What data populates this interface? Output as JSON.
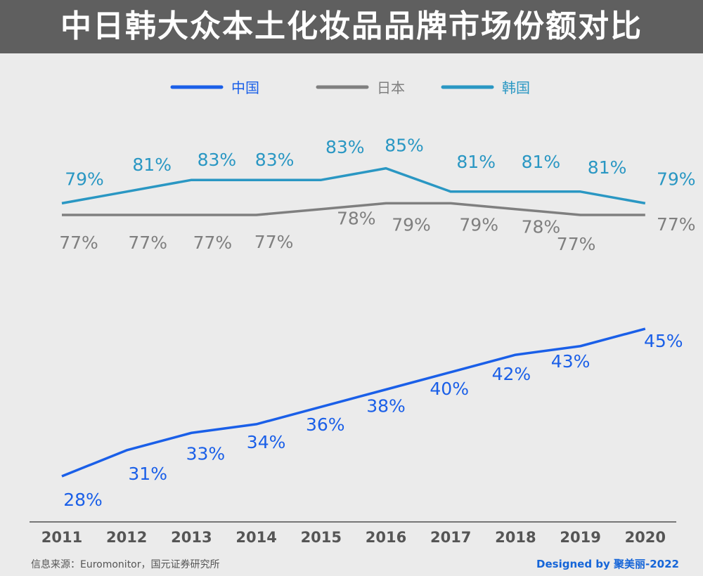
{
  "title": "中日韩大众本土化妆品品牌市场份额对比",
  "source": "信息来源：Euromonitor，国元证券研究所",
  "credit": "Designed by 聚美丽-2022",
  "colors": {
    "中国": "#1a5fe8",
    "日本": "#7f7f7f",
    "韩国": "#2a97c3"
  },
  "chart_data": {
    "type": "line",
    "x": [
      "2011",
      "2012",
      "2013",
      "2014",
      "2015",
      "2016",
      "2017",
      "2018",
      "2019",
      "2020"
    ],
    "series": [
      {
        "name": "中国",
        "values": [
          28,
          31,
          33,
          34,
          36,
          38,
          40,
          42,
          43,
          45
        ],
        "labels": [
          "28%",
          "31%",
          "33%",
          "34%",
          "36%",
          "38%",
          "40%",
          "42%",
          "43%",
          "45%"
        ]
      },
      {
        "name": "日本",
        "values": [
          77,
          77,
          77,
          77,
          78,
          79,
          79,
          78,
          77,
          77
        ],
        "labels": [
          "77%",
          "77%",
          "77%",
          "77%",
          "78%",
          "79%",
          "79%",
          "78%",
          "77%",
          "77%"
        ]
      },
      {
        "name": "韩国",
        "values": [
          79,
          81,
          83,
          83,
          83,
          85,
          81,
          81,
          81,
          79
        ],
        "labels": [
          "79%",
          "81%",
          "83%",
          "83%",
          "83%",
          "85%",
          "81%",
          "81%",
          "81%",
          "79%"
        ]
      }
    ],
    "legend": "top-center",
    "grid": false
  }
}
